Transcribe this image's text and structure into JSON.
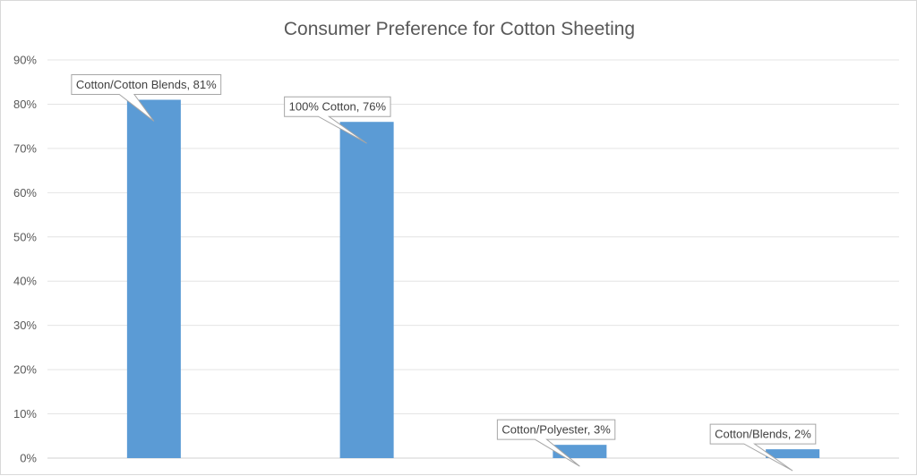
{
  "chart_data": {
    "type": "bar",
    "title": "Consumer  Preference for Cotton Sheeting",
    "categories": [
      "Cotton/Cotton Blends",
      "100% Cotton",
      "Cotton/Polyester",
      "Cotton/Blends"
    ],
    "values": [
      81,
      76,
      3,
      2
    ],
    "data_labels": [
      "Cotton/Cotton Blends, 81%",
      "100% Cotton, 76%",
      "Cotton/Polyester, 3%",
      "Cotton/Blends, 2%"
    ],
    "ylim": [
      0,
      90
    ],
    "yticks": [
      "0%",
      "10%",
      "20%",
      "30%",
      "40%",
      "50%",
      "60%",
      "70%",
      "80%",
      "90%"
    ],
    "xlabel": "",
    "ylabel": "",
    "grid": true,
    "legend": "none",
    "bar_color": "#5b9bd5"
  }
}
